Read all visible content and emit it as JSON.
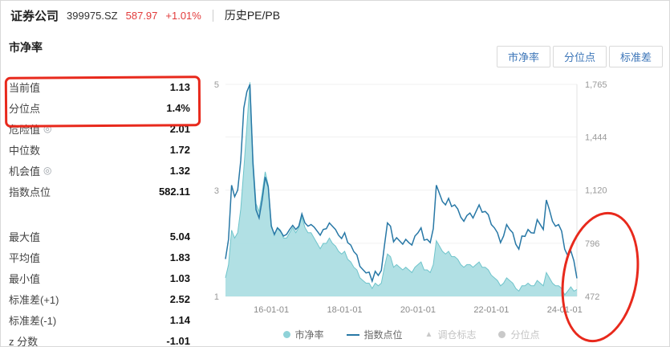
{
  "colors": {
    "accent_red": "#e23b3b",
    "annotation_red": "#e8291c",
    "button_text_blue": "#3d76b8",
    "teal_area": "#a9dde1",
    "teal_edge": "#6fc4cb",
    "index_line_blue": "#2878a6",
    "disabled_gray": "#c9c9c9"
  },
  "header": {
    "name": "证券公司",
    "code": "399975.SZ",
    "price": "587.97",
    "change": "+1.01%",
    "tab": "历史PE/PB"
  },
  "panel": {
    "title": "市净率",
    "rows": [
      {
        "label": "当前值",
        "value": "1.13"
      },
      {
        "label": "分位点",
        "value": "1.4%"
      },
      {
        "label": "危险值",
        "value": "2.01",
        "icon": "info-icon"
      },
      {
        "label": "中位数",
        "value": "1.72"
      },
      {
        "label": "机会值",
        "value": "1.32",
        "icon": "info-icon"
      },
      {
        "label": "指数点位",
        "value": "582.11"
      }
    ],
    "rows2": [
      {
        "label": "最大值",
        "value": "5.04"
      },
      {
        "label": "平均值",
        "value": "1.83"
      },
      {
        "label": "最小值",
        "value": "1.03"
      },
      {
        "label": "标准差(+1)",
        "value": "2.52"
      },
      {
        "label": "标准差(-1)",
        "value": "1.14"
      },
      {
        "label": "z 分数",
        "value": "-1.01"
      }
    ]
  },
  "toolbar": {
    "buttons": [
      {
        "key": "pb",
        "label": "市净率"
      },
      {
        "key": "percentile",
        "label": "分位点"
      },
      {
        "key": "stddev",
        "label": "标准差"
      }
    ]
  },
  "legend": {
    "items": [
      {
        "key": "pb",
        "label": "市净率",
        "marker": "dot",
        "color": "#8fd2d8",
        "enabled": true
      },
      {
        "key": "index-level",
        "label": "指数点位",
        "marker": "line",
        "color": "#2878a6",
        "enabled": true
      },
      {
        "key": "rebalance-flag",
        "label": "调仓标志",
        "marker": "triangle",
        "color": "#c9c9c9",
        "enabled": false
      },
      {
        "key": "percentile",
        "label": "分位点",
        "marker": "dot",
        "color": "#c9c9c9",
        "enabled": false
      }
    ]
  },
  "chart_data": {
    "type": "area+line",
    "title": "证券公司 399975.SZ 历史市净率与指数点位",
    "x_unit": "month",
    "x_range": [
      "2014-10",
      "2024-05"
    ],
    "x_ticks": [
      {
        "i": 15,
        "label": "16-01-01"
      },
      {
        "i": 39,
        "label": "18-01-01"
      },
      {
        "i": 63,
        "label": "20-01-01"
      },
      {
        "i": 87,
        "label": "22-01-01"
      },
      {
        "i": 111,
        "label": "24-01-01"
      }
    ],
    "left_axis": {
      "name": "市净率",
      "min": 1,
      "max": 5,
      "ticks": [
        {
          "v": 1,
          "label": "1"
        },
        {
          "v": 3,
          "label": "3"
        },
        {
          "v": 5,
          "label": "5"
        }
      ]
    },
    "right_axis": {
      "name": "指数点位",
      "min": 472,
      "max": 1765,
      "ticks": [
        {
          "v": 472,
          "label": "472"
        },
        {
          "v": 796,
          "label": "796"
        },
        {
          "v": 1120,
          "label": "1,120"
        },
        {
          "v": 1444,
          "label": "1,444"
        },
        {
          "v": 1765,
          "label": "1,765"
        }
      ]
    },
    "series": [
      {
        "name": "市净率",
        "type": "area",
        "axis": "left",
        "color": "#a9dde1",
        "edge": "#6fc4cb",
        "values": [
          1.35,
          1.6,
          2.25,
          2.1,
          2.2,
          2.65,
          3.4,
          4.2,
          5.04,
          3.6,
          2.75,
          2.6,
          2.95,
          3.35,
          3.1,
          2.35,
          2.15,
          2.3,
          2.25,
          2.1,
          2.1,
          2.2,
          2.3,
          2.2,
          2.3,
          2.5,
          2.3,
          2.2,
          2.2,
          2.1,
          2.0,
          1.9,
          2.0,
          2.0,
          2.1,
          2.0,
          1.95,
          1.85,
          1.8,
          1.85,
          1.7,
          1.65,
          1.55,
          1.5,
          1.35,
          1.3,
          1.25,
          1.25,
          1.15,
          1.25,
          1.2,
          1.25,
          1.55,
          1.8,
          1.75,
          1.55,
          1.6,
          1.55,
          1.5,
          1.55,
          1.5,
          1.45,
          1.55,
          1.6,
          1.65,
          1.5,
          1.5,
          1.45,
          1.6,
          2.05,
          1.95,
          1.85,
          1.8,
          1.85,
          1.75,
          1.75,
          1.7,
          1.6,
          1.55,
          1.6,
          1.6,
          1.55,
          1.6,
          1.65,
          1.55,
          1.55,
          1.5,
          1.4,
          1.35,
          1.3,
          1.2,
          1.25,
          1.35,
          1.3,
          1.25,
          1.15,
          1.1,
          1.2,
          1.2,
          1.25,
          1.2,
          1.2,
          1.3,
          1.25,
          1.2,
          1.45,
          1.35,
          1.25,
          1.2,
          1.2,
          1.15,
          1.03,
          1.1,
          1.18,
          1.1,
          1.13
        ]
      },
      {
        "name": "指数点位",
        "type": "line",
        "axis": "right",
        "color": "#2878a6",
        "values": [
          700,
          820,
          1150,
          1080,
          1120,
          1300,
          1620,
          1720,
          1765,
          1280,
          1000,
          950,
          1060,
          1200,
          1140,
          900,
          850,
          890,
          870,
          840,
          850,
          880,
          905,
          880,
          900,
          975,
          920,
          900,
          910,
          895,
          870,
          845,
          880,
          885,
          920,
          900,
          880,
          845,
          825,
          860,
          800,
          785,
          745,
          725,
          655,
          635,
          615,
          620,
          565,
          625,
          600,
          630,
          780,
          920,
          900,
          805,
          830,
          810,
          790,
          820,
          800,
          785,
          840,
          860,
          890,
          815,
          820,
          800,
          885,
          1150,
          1100,
          1050,
          1030,
          1070,
          1020,
          1030,
          1005,
          955,
          930,
          965,
          980,
          950,
          990,
          1030,
          985,
          990,
          970,
          910,
          890,
          860,
          800,
          840,
          910,
          880,
          860,
          790,
          760,
          840,
          838,
          880,
          860,
          858,
          940,
          910,
          880,
          1060,
          1000,
          930,
          900,
          910,
          870,
          760,
          720,
          750,
          690,
          582
        ]
      }
    ]
  }
}
